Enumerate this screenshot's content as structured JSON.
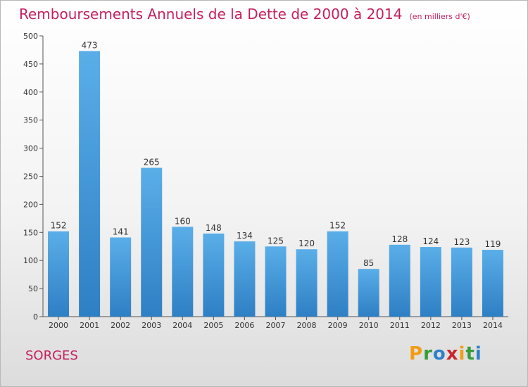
{
  "header": {
    "title": "Remboursements Annuels de la Dette de 2000 à 2014",
    "subtitle": "(en milliers d'€)"
  },
  "footer": {
    "city": "SORGES",
    "brand": [
      "P",
      "r",
      "o",
      "x",
      "i",
      "t",
      "i"
    ],
    "brand_colors": [
      "#f39c12",
      "#3a9b3a",
      "#2f80c9",
      "#c9262b",
      "#f39c12",
      "#3a9b3a",
      "#2f80c9"
    ]
  },
  "chart_data": {
    "type": "bar",
    "title": "Remboursements Annuels de la Dette de 2000 à 2014",
    "subtitle": "(en milliers d'€)",
    "xlabel": "",
    "ylabel": "",
    "categories": [
      "2000",
      "2001",
      "2002",
      "2003",
      "2004",
      "2005",
      "2006",
      "2007",
      "2008",
      "2009",
      "2010",
      "2011",
      "2012",
      "2013",
      "2014"
    ],
    "values": [
      152,
      473,
      141,
      265,
      160,
      148,
      134,
      125,
      120,
      152,
      85,
      128,
      124,
      123,
      119
    ],
    "ylim": [
      0,
      500
    ],
    "yticks": [
      0,
      50,
      100,
      150,
      200,
      250,
      300,
      350,
      400,
      450,
      500
    ],
    "grid": false,
    "bar_color_top": "#5aaee8",
    "bar_color_bottom": "#2e7fc4"
  }
}
